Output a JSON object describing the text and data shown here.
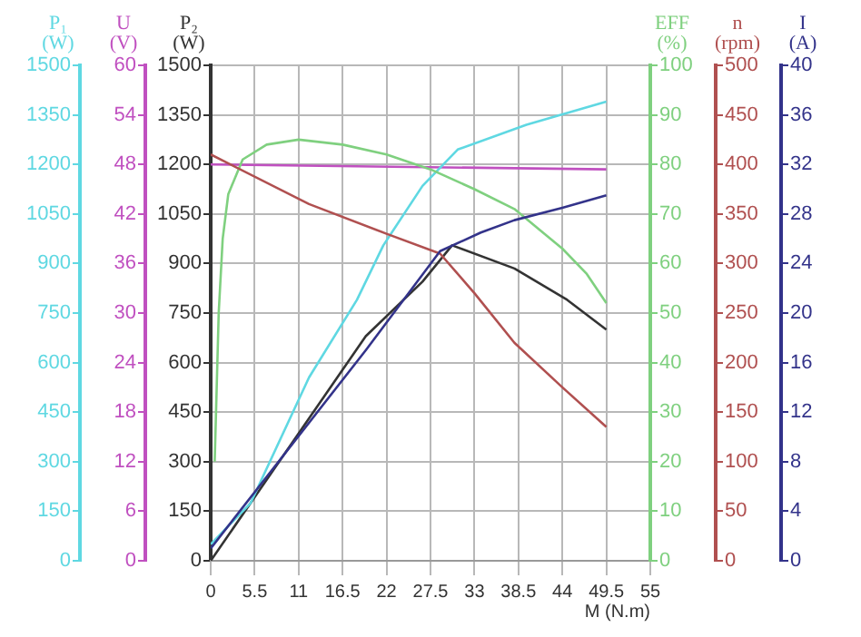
{
  "chart_data": [
    {
      "type": "line",
      "xlabel": "M (N.m)",
      "xlim": [
        0,
        55
      ],
      "xticks": [
        0,
        5.5,
        11,
        16.5,
        22,
        27.5,
        33,
        38.5,
        44,
        49.5,
        55
      ],
      "ylabel": "P₂ (W)",
      "ylim": [
        0,
        1500
      ],
      "yticks": [
        0,
        150,
        300,
        450,
        600,
        750,
        900,
        1050,
        1200,
        1350,
        1500
      ],
      "y2label": "U (V)",
      "y2lim": [
        0,
        60
      ],
      "y2ticks": [
        0,
        6,
        12,
        18,
        24,
        30,
        36,
        42,
        48,
        54,
        60
      ],
      "y3label": "P₁ (W)",
      "y3lim": [
        0,
        1500
      ],
      "y3ticks": [
        0,
        150,
        300,
        450,
        600,
        750,
        900,
        1050,
        1200,
        1350,
        1500
      ],
      "grid": true,
      "legend": false,
      "marker": "none",
      "line_style": "solid",
      "series": [
        {
          "axis": "y3",
          "color": "#5fd8e2",
          "x": [
            0,
            5,
            12.3,
            18.3,
            21.6,
            26.5,
            30.9,
            39.5,
            49.5
          ],
          "values": [
            50,
            175,
            555,
            790,
            955,
            1135,
            1245,
            1320,
            1390
          ]
        },
        {
          "axis": "y2",
          "color": "#c050c0",
          "x": [
            0,
            49.5
          ],
          "values": [
            48,
            47.4
          ]
        },
        {
          "color": "#333333",
          "x": [
            0,
            19.4,
            26.5,
            30.2,
            38,
            44.6,
            49.5
          ],
          "values": [
            0,
            680,
            845,
            955,
            885,
            790,
            700
          ]
        }
      ]
    },
    {
      "type": "line",
      "xlim": [
        0,
        55
      ],
      "tick_labels": "y",
      "ylabel": "I (A)",
      "ylim": [
        0,
        40
      ],
      "yticks": [
        0,
        4,
        8,
        12,
        16,
        20,
        24,
        28,
        32,
        36,
        40
      ],
      "y2label": "n (rpm)",
      "y2lim": [
        0,
        500
      ],
      "y2ticks": [
        0,
        50,
        100,
        150,
        200,
        250,
        300,
        350,
        400,
        450,
        500
      ],
      "y3label": "EFF (%)",
      "y3lim": [
        0,
        100
      ],
      "y3ticks": [
        0,
        10,
        20,
        30,
        40,
        50,
        60,
        70,
        80,
        90,
        100
      ],
      "legend": false,
      "marker": "none",
      "line_style": "solid",
      "series": [
        {
          "color": "#33338a",
          "x": [
            0,
            19.4,
            28.7,
            33.8,
            38,
            44,
            49.5
          ],
          "values": [
            1,
            17,
            25,
            26.5,
            27.5,
            28.5,
            29.5
          ]
        },
        {
          "axis": "y2",
          "color": "#b05050",
          "x": [
            0,
            12.3,
            22,
            28.7,
            33,
            38,
            44,
            49.5
          ],
          "values": [
            410,
            360,
            330,
            310,
            270,
            220,
            175,
            135
          ]
        },
        {
          "axis": "y3",
          "color": "#7fd07f",
          "x": [
            0.5,
            1,
            1.5,
            2.2,
            4,
            7,
            11,
            16.5,
            22,
            27.5,
            33,
            38,
            44,
            47,
            49.5
          ],
          "values": [
            20,
            50,
            65,
            74,
            81,
            84,
            85,
            84,
            82,
            79,
            75,
            71,
            63,
            58,
            52
          ]
        }
      ]
    }
  ]
}
